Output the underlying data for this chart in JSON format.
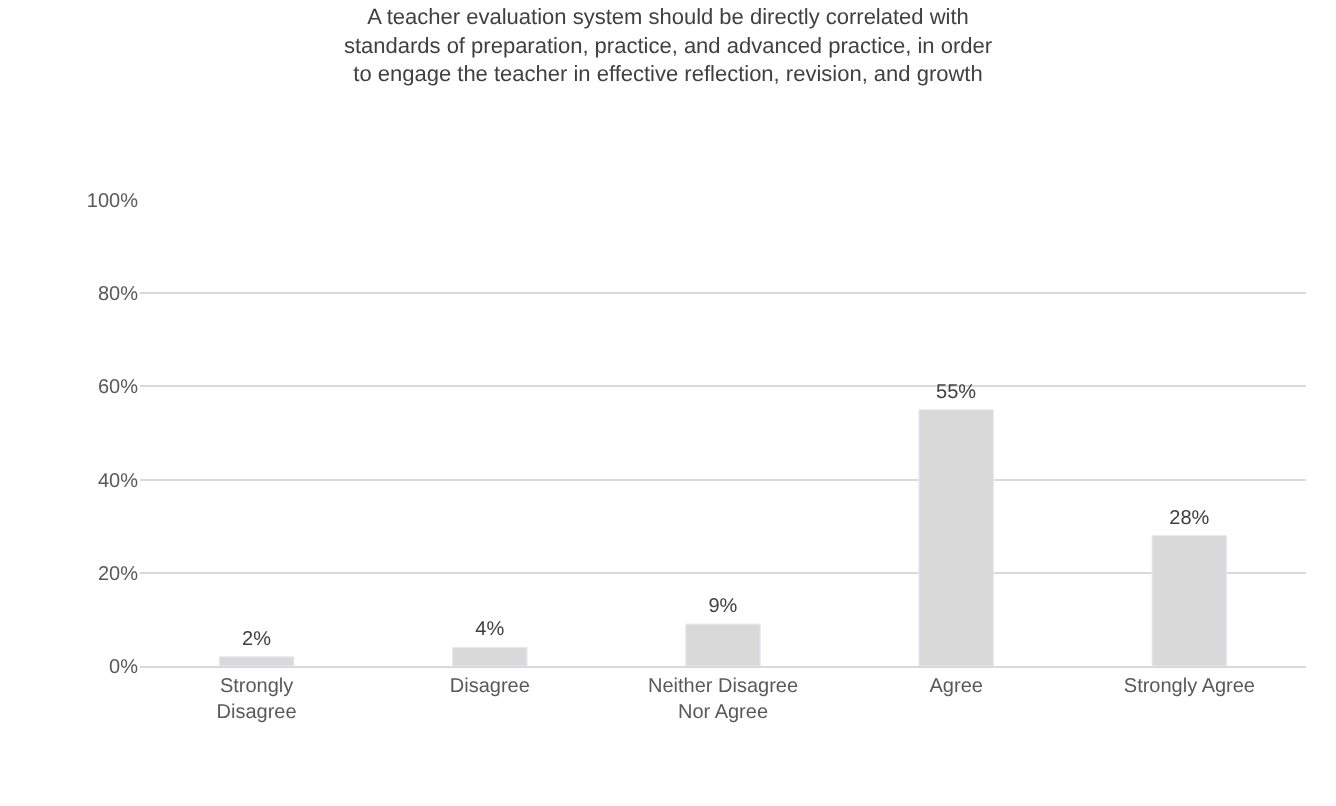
{
  "chart_data": {
    "type": "bar",
    "title": "A teacher evaluation system should be directly correlated with\nstandards of preparation, practice, and advanced practice, in order\nto engage the teacher in effective reflection, revision, and growth",
    "categories": [
      "Strongly\nDisagree",
      "Disagree",
      "Neither Disagree\nNor Agree",
      "Agree",
      "Strongly Agree"
    ],
    "values": [
      2,
      4,
      9,
      55,
      28
    ],
    "value_labels": [
      "2%",
      "4%",
      "9%",
      "55%",
      "28%"
    ],
    "color": "#d9d9d9",
    "ylim": [
      0,
      100
    ],
    "yticks": [
      {
        "value": 0,
        "label": "0%"
      },
      {
        "value": 20,
        "label": "20%"
      },
      {
        "value": 40,
        "label": "40%"
      },
      {
        "value": 60,
        "label": "60%"
      },
      {
        "value": 80,
        "label": "80%"
      },
      {
        "value": 100,
        "label": "100%"
      }
    ],
    "grid": "y",
    "legend": false
  }
}
